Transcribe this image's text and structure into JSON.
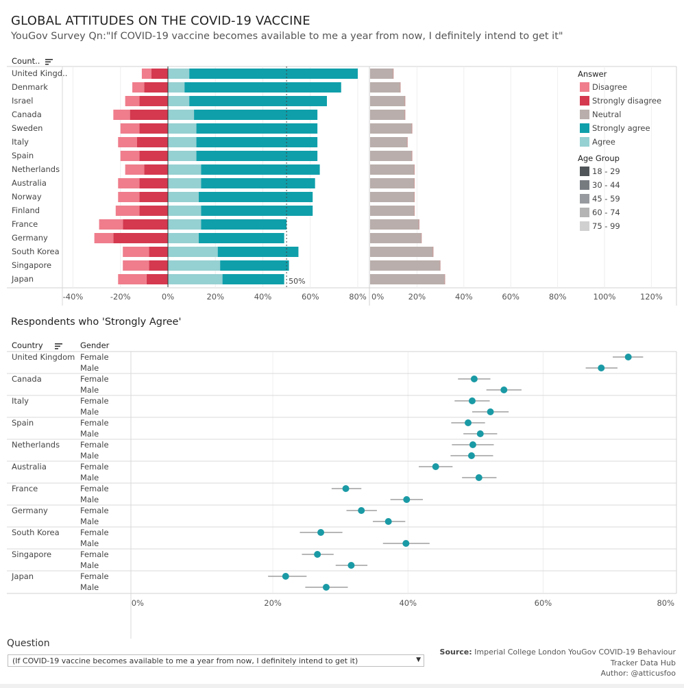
{
  "header": {
    "title": "GLOBAL ATTITUDES ON THE COVID-19 VACCINE",
    "subtitle": "YouGov Survey Qn:\"If COVID-19 vaccine becomes available to me a year from now, I definitely intend to get it\""
  },
  "top_chart": {
    "country_header": "Count..",
    "sort_icon": "sort-descending-icon",
    "reference_label": "50%",
    "x_ticks_left": [
      "-40%",
      "-20%",
      "0%",
      "20%",
      "40%",
      "60%",
      "80%"
    ],
    "x_ticks_right": [
      "0%",
      "20%",
      "40%",
      "60%",
      "80%",
      "100%",
      "120%"
    ]
  },
  "legend": {
    "answer_title": "Answer",
    "answer_items": [
      {
        "label": "Disagree",
        "color": "#ef7d8c"
      },
      {
        "label": "Strongly disagree",
        "color": "#d4394f"
      },
      {
        "label": "Neutral",
        "color": "#b9aeab"
      },
      {
        "label": "Strongly agree",
        "color": "#0f9faa"
      },
      {
        "label": "Agree",
        "color": "#95d0d2"
      }
    ],
    "age_title": "Age Group",
    "age_items": [
      {
        "label": "18 - 29",
        "color": "#505559"
      },
      {
        "label": "30 - 44",
        "color": "#767b80"
      },
      {
        "label": "45 - 59",
        "color": "#979a9e"
      },
      {
        "label": "60 - 74",
        "color": "#b4b4b4"
      },
      {
        "label": "75 - 99",
        "color": "#d0d0d0"
      }
    ]
  },
  "bottom_chart": {
    "section_title": "Respondents who 'Strongly Agree'",
    "country_header": "Country",
    "gender_header": "Gender",
    "sort_icon": "sort-descending-icon",
    "x_ticks": [
      "0%",
      "20%",
      "40%",
      "60%",
      "80%"
    ]
  },
  "footer": {
    "question_label": "Question",
    "question_value": "(If COVID-19 vaccine becomes available to me a year from now, I definitely intend to get it)",
    "source_label": "Source:",
    "source_line1": "Imperial College London YouGov COVID-19 Behaviour",
    "source_line2": "Tracker Data Hub",
    "author_label": "Author:",
    "author_value": "@atticusfoo"
  },
  "chart_data": [
    {
      "type": "bar",
      "title": "",
      "orientation": "horizontal-diverging",
      "xlim": [
        -45,
        125
      ],
      "reference_line": 50,
      "categories": [
        "United Kingdom",
        "Denmark",
        "Israel",
        "Canada",
        "Sweden",
        "Italy",
        "Spain",
        "Netherlands",
        "Australia",
        "Norway",
        "Finland",
        "France",
        "Germany",
        "South Korea",
        "Singapore",
        "Japan"
      ],
      "series": [
        {
          "name": "Disagree",
          "values": [
            -4,
            -5,
            -6,
            -7,
            -8,
            -8,
            -8,
            -8,
            -9,
            -9,
            -10,
            -10,
            -8,
            -11,
            -11,
            -12
          ]
        },
        {
          "name": "Strongly disagree",
          "values": [
            -7,
            -10,
            -12,
            -16,
            -12,
            -13,
            -12,
            -10,
            -12,
            -12,
            -12,
            -19,
            -23,
            -8,
            -8,
            -9
          ]
        },
        {
          "name": "Agree",
          "values": [
            9,
            7,
            9,
            11,
            12,
            12,
            12,
            14,
            14,
            13,
            14,
            14,
            13,
            21,
            22,
            23
          ]
        },
        {
          "name": "Strongly agree",
          "values": [
            71,
            66,
            58,
            52,
            51,
            51,
            51,
            50,
            48,
            48,
            47,
            36,
            36,
            34,
            29,
            26
          ]
        },
        {
          "name": "Neutral",
          "values": [
            10,
            13,
            15,
            15,
            18,
            16,
            18,
            19,
            19,
            19,
            19,
            21,
            22,
            27,
            30,
            32
          ]
        }
      ]
    },
    {
      "type": "scatter",
      "title": "Respondents who 'Strongly Agree'",
      "xlim": [
        -1,
        80
      ],
      "rows": [
        {
          "country": "United Kingdom",
          "gender": "Female",
          "value": 72.6,
          "low": 70.3,
          "high": 74.8
        },
        {
          "country": "",
          "gender": "Male",
          "value": 68.6,
          "low": 66.3,
          "high": 71.0
        },
        {
          "country": "Canada",
          "gender": "Female",
          "value": 49.8,
          "low": 47.4,
          "high": 52.2
        },
        {
          "country": "",
          "gender": "Male",
          "value": 54.2,
          "low": 51.6,
          "high": 56.8
        },
        {
          "country": "Italy",
          "gender": "Female",
          "value": 49.5,
          "low": 46.9,
          "high": 52.1
        },
        {
          "country": "",
          "gender": "Male",
          "value": 52.2,
          "low": 49.5,
          "high": 54.9
        },
        {
          "country": "Spain",
          "gender": "Female",
          "value": 48.9,
          "low": 46.4,
          "high": 51.4
        },
        {
          "country": "",
          "gender": "Male",
          "value": 50.7,
          "low": 48.2,
          "high": 53.2
        },
        {
          "country": "Netherlands",
          "gender": "Female",
          "value": 49.6,
          "low": 46.5,
          "high": 52.7
        },
        {
          "country": "",
          "gender": "Male",
          "value": 49.4,
          "low": 46.3,
          "high": 52.6
        },
        {
          "country": "Australia",
          "gender": "Female",
          "value": 44.1,
          "low": 41.6,
          "high": 46.6
        },
        {
          "country": "",
          "gender": "Male",
          "value": 50.5,
          "low": 48.0,
          "high": 53.1
        },
        {
          "country": "France",
          "gender": "Female",
          "value": 30.8,
          "low": 28.7,
          "high": 33.1
        },
        {
          "country": "",
          "gender": "Male",
          "value": 39.8,
          "low": 37.4,
          "high": 42.2
        },
        {
          "country": "Germany",
          "gender": "Female",
          "value": 33.1,
          "low": 30.9,
          "high": 35.4
        },
        {
          "country": "",
          "gender": "Male",
          "value": 37.1,
          "low": 34.8,
          "high": 39.6
        },
        {
          "country": "South Korea",
          "gender": "Female",
          "value": 27.1,
          "low": 24.0,
          "high": 30.3
        },
        {
          "country": "",
          "gender": "Male",
          "value": 39.7,
          "low": 36.3,
          "high": 43.2
        },
        {
          "country": "Singapore",
          "gender": "Female",
          "value": 26.6,
          "low": 24.3,
          "high": 29.0
        },
        {
          "country": "",
          "gender": "Male",
          "value": 31.6,
          "low": 29.3,
          "high": 34.0
        },
        {
          "country": "Japan",
          "gender": "Female",
          "value": 21.9,
          "low": 19.3,
          "high": 25.0
        },
        {
          "country": "",
          "gender": "Male",
          "value": 27.9,
          "low": 24.8,
          "high": 31.1
        }
      ],
      "point_color": "#1a9aa5",
      "ci_color": "#8a8a8a"
    }
  ]
}
